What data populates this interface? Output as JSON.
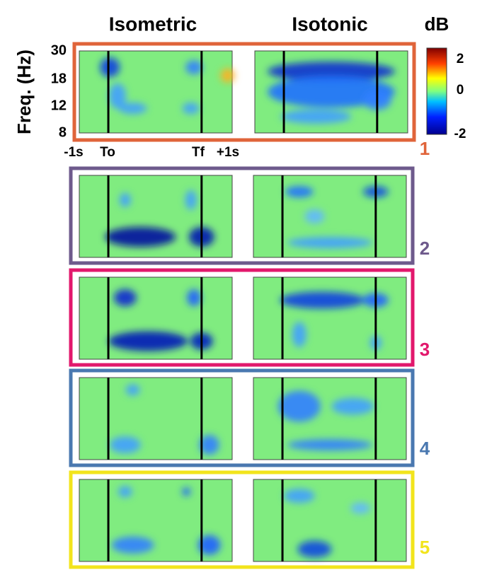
{
  "header": {
    "columns": [
      "Isometric",
      "Isotonic"
    ],
    "unit": "dB"
  },
  "colorbar": {
    "ticks": [
      "2",
      "0",
      "-2"
    ]
  },
  "y_axis": {
    "label": "Freq. (Hz)",
    "ticks": [
      "30",
      "18",
      "12",
      "8"
    ]
  },
  "x_axis": {
    "ticks": [
      "-1s",
      "To",
      "Tf",
      "+1s"
    ]
  },
  "rows": [
    {
      "label": "1"
    },
    {
      "label": "2"
    },
    {
      "label": "3"
    },
    {
      "label": "4"
    },
    {
      "label": "5"
    }
  ]
}
